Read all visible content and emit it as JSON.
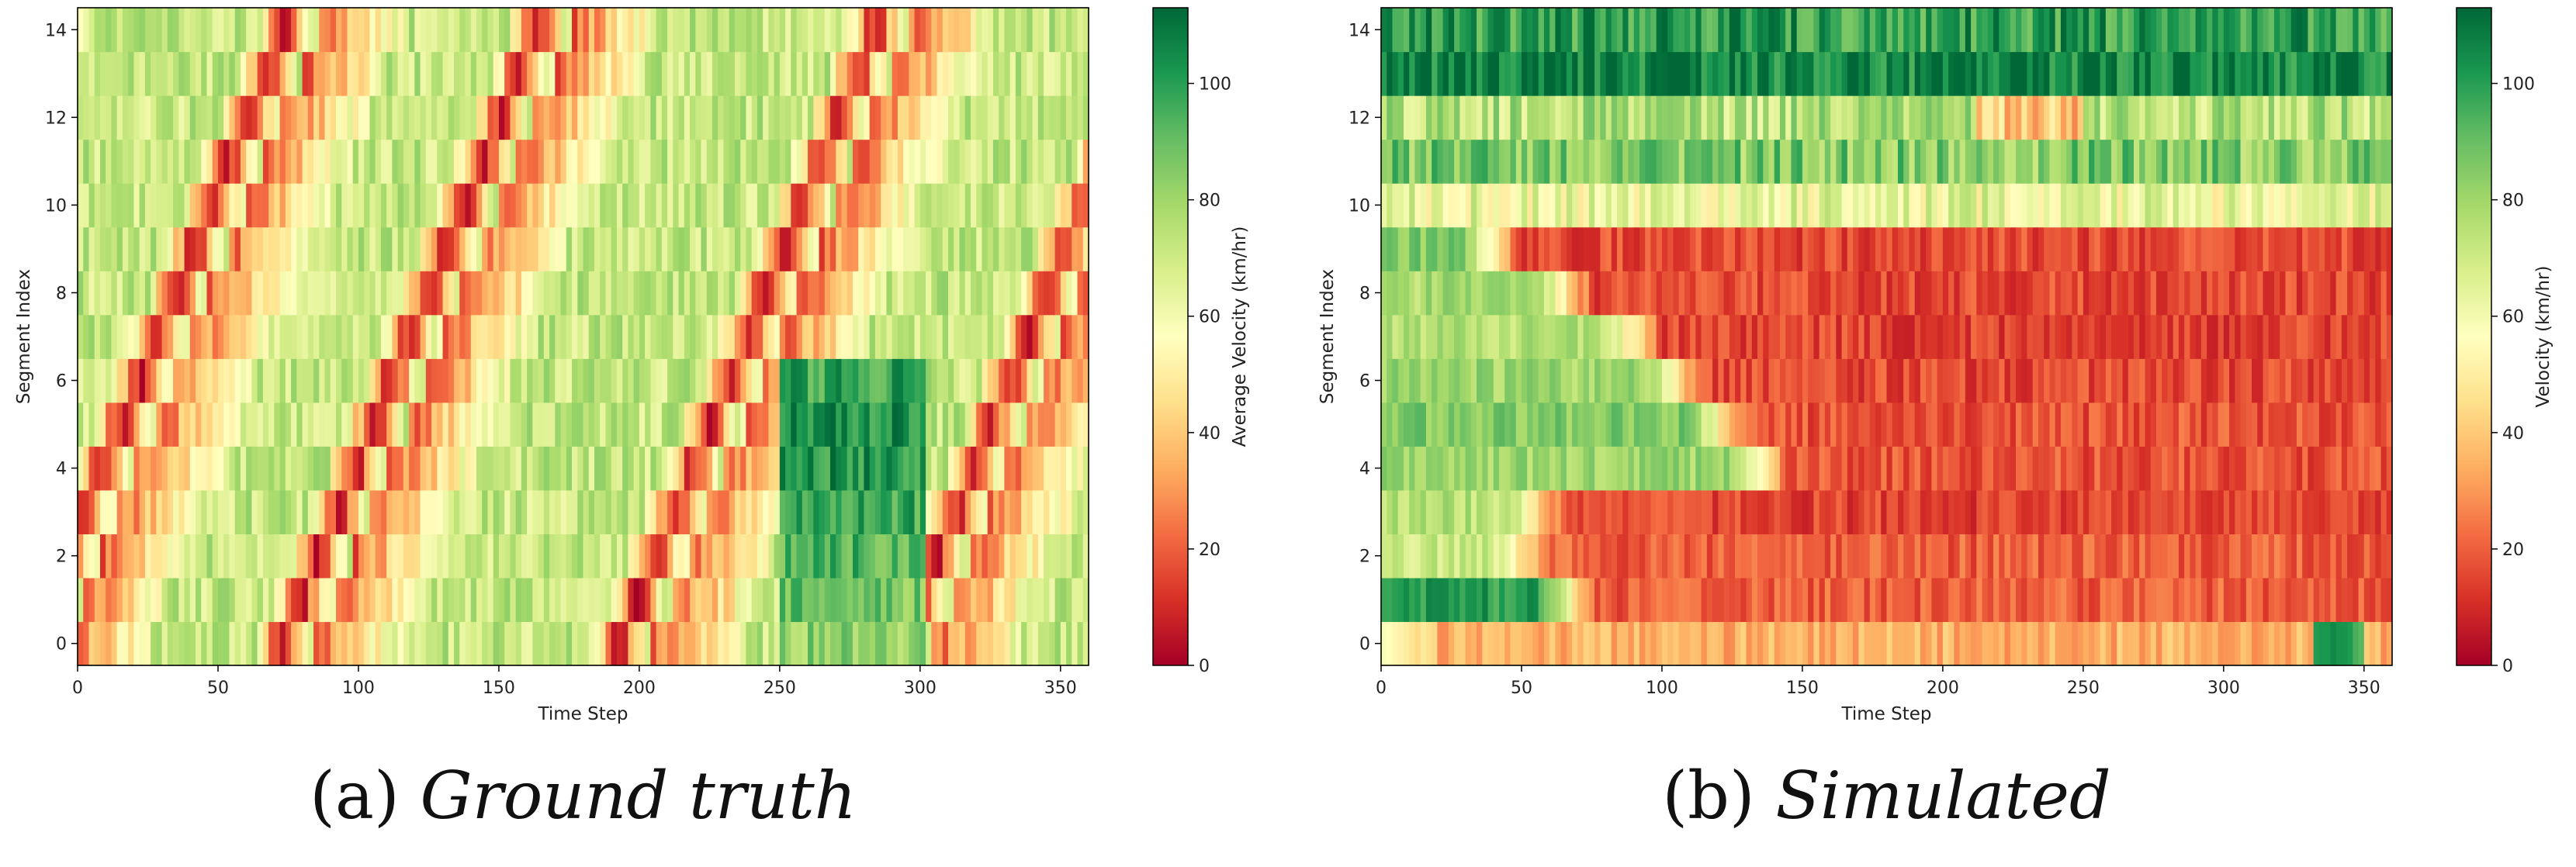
{
  "chart_data": [
    {
      "type": "heatmap",
      "caption_prefix": "(a)",
      "caption_title": "Ground truth",
      "xlabel": "Time Step",
      "ylabel": "Segment Index",
      "xlim": [
        0,
        360
      ],
      "ylim": [
        -0.5,
        14.5
      ],
      "x_ticks": [
        0,
        50,
        100,
        150,
        200,
        250,
        300,
        350
      ],
      "y_ticks": [
        0,
        2,
        4,
        6,
        8,
        10,
        12,
        14
      ],
      "colorbar": {
        "label": "Average Velocity (km/hr)",
        "range": [
          0,
          113
        ],
        "ticks": [
          0,
          20,
          40,
          60,
          80,
          100
        ],
        "colormap": "RdYlGn"
      },
      "segments": 15,
      "time_steps": 360,
      "pattern": "congestion waves (low-velocity bands) propagating upstream, moving ~5 segments per ~30 time steps",
      "congestion_wave_origins_at_segment_0": [
        -130,
        -20,
        70,
        190,
        290
      ],
      "congestion_wave_slope_steps_per_segment": -6.5,
      "high_velocity_region": {
        "segments": [
          0,
          6
        ],
        "time_steps": [
          250,
          300
        ],
        "velocity_kmh": 105
      }
    },
    {
      "type": "heatmap",
      "caption_prefix": "(b)",
      "caption_title": "Simulated",
      "xlabel": "Time Step",
      "ylabel": "Segment Index",
      "xlim": [
        0,
        360
      ],
      "ylim": [
        -0.5,
        14.5
      ],
      "x_ticks": [
        0,
        50,
        100,
        150,
        200,
        250,
        300,
        350
      ],
      "y_ticks": [
        0,
        2,
        4,
        6,
        8,
        10,
        12,
        14
      ],
      "colorbar": {
        "label": "Velocity (km/hr)",
        "range": [
          0,
          113
        ],
        "ticks": [
          0,
          20,
          40,
          60,
          80,
          100
        ],
        "colormap": "RdYlGn"
      },
      "segments": 15,
      "time_steps": 360,
      "pattern": "upper segments free-flowing (green), lower segments congested (red) after an initial green period",
      "segment_profiles": [
        {
          "segment": 0,
          "free_until_step": 0,
          "free_velocity": 60,
          "congested_velocity": 35
        },
        {
          "segment": 1,
          "free_until_step": 55,
          "free_velocity": 100,
          "congested_velocity": 20
        },
        {
          "segment": 2,
          "free_until_step": 40,
          "free_velocity": 70,
          "congested_velocity": 20
        },
        {
          "segment": 3,
          "free_until_step": 45,
          "free_velocity": 75,
          "congested_velocity": 15
        },
        {
          "segment": 4,
          "free_until_step": 125,
          "free_velocity": 80,
          "congested_velocity": 18
        },
        {
          "segment": 5,
          "free_until_step": 110,
          "free_velocity": 85,
          "congested_velocity": 18
        },
        {
          "segment": 6,
          "free_until_step": 95,
          "free_velocity": 80,
          "congested_velocity": 16
        },
        {
          "segment": 7,
          "free_until_step": 80,
          "free_velocity": 75,
          "congested_velocity": 15
        },
        {
          "segment": 8,
          "free_until_step": 55,
          "free_velocity": 78,
          "congested_velocity": 16
        },
        {
          "segment": 9,
          "free_until_step": 28,
          "free_velocity": 85,
          "congested_velocity": 16
        },
        {
          "segment": 10,
          "free_until_step": 360,
          "free_velocity": 62,
          "congested_velocity": 62
        },
        {
          "segment": 11,
          "free_until_step": 360,
          "free_velocity": 85,
          "congested_velocity": 85
        },
        {
          "segment": 12,
          "free_until_step": 360,
          "free_velocity": 75,
          "congested_velocity": 75
        },
        {
          "segment": 13,
          "free_until_step": 360,
          "free_velocity": 108,
          "congested_velocity": 108
        },
        {
          "segment": 14,
          "free_until_step": 360,
          "free_velocity": 100,
          "congested_velocity": 100
        }
      ]
    }
  ]
}
